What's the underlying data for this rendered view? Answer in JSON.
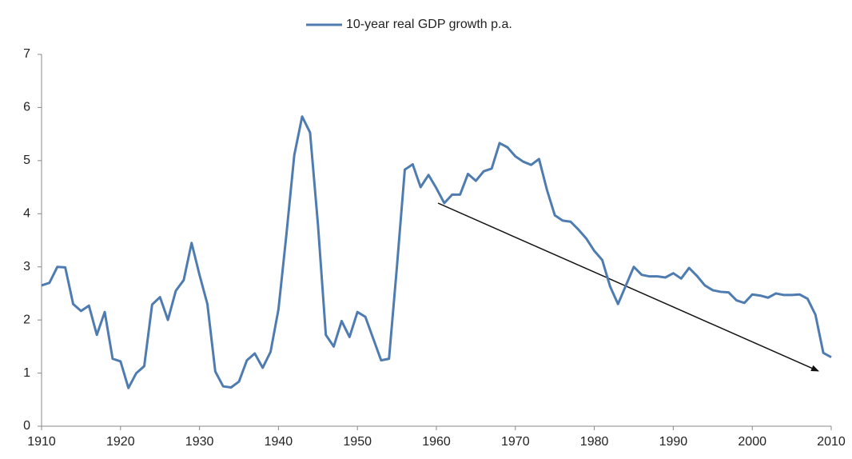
{
  "chart_data": {
    "type": "line",
    "x": [
      1910,
      1911,
      1912,
      1913,
      1914,
      1915,
      1916,
      1917,
      1918,
      1919,
      1920,
      1921,
      1922,
      1923,
      1924,
      1925,
      1926,
      1927,
      1928,
      1929,
      1930,
      1931,
      1932,
      1933,
      1934,
      1935,
      1936,
      1937,
      1938,
      1939,
      1940,
      1941,
      1942,
      1943,
      1944,
      1945,
      1946,
      1947,
      1948,
      1949,
      1950,
      1951,
      1952,
      1953,
      1954,
      1955,
      1956,
      1957,
      1958,
      1959,
      1960,
      1961,
      1962,
      1963,
      1964,
      1965,
      1966,
      1967,
      1968,
      1969,
      1970,
      1971,
      1972,
      1973,
      1974,
      1975,
      1976,
      1977,
      1978,
      1979,
      1980,
      1981,
      1982,
      1983,
      1984,
      1985,
      1986,
      1987,
      1988,
      1989,
      1990,
      1991,
      1992,
      1993,
      1994,
      1995,
      1996,
      1997,
      1998,
      1999,
      2000,
      2001,
      2002,
      2003,
      2004,
      2005,
      2006,
      2007,
      2008,
      2009,
      2010
    ],
    "series": [
      {
        "name": "10-year real GDP growth p.a.",
        "color": "#4f7cb0",
        "values": [
          2.65,
          2.7,
          3.0,
          2.99,
          2.3,
          2.17,
          2.27,
          1.72,
          2.15,
          1.27,
          1.22,
          0.72,
          1.0,
          1.13,
          2.29,
          2.43,
          2.0,
          2.55,
          2.75,
          3.45,
          2.85,
          2.3,
          1.03,
          0.75,
          0.73,
          0.84,
          1.24,
          1.37,
          1.1,
          1.4,
          2.2,
          3.6,
          5.1,
          5.83,
          5.53,
          3.8,
          1.72,
          1.5,
          1.98,
          1.68,
          2.15,
          2.06,
          1.65,
          1.24,
          1.27,
          3.0,
          4.83,
          4.93,
          4.5,
          4.73,
          4.48,
          4.2,
          4.36,
          4.36,
          4.75,
          4.62,
          4.8,
          4.85,
          5.33,
          5.25,
          5.08,
          4.98,
          4.92,
          5.03,
          4.45,
          3.97,
          3.87,
          3.85,
          3.7,
          3.53,
          3.3,
          3.13,
          2.63,
          2.3,
          2.65,
          3.0,
          2.85,
          2.82,
          2.82,
          2.8,
          2.88,
          2.78,
          2.98,
          2.83,
          2.65,
          2.56,
          2.53,
          2.52,
          2.37,
          2.32,
          2.48,
          2.46,
          2.42,
          2.5,
          2.47,
          2.47,
          2.48,
          2.4,
          2.1,
          1.38,
          1.3
        ]
      }
    ],
    "xlim": [
      1910,
      2010
    ],
    "xticks": [
      1910,
      1920,
      1930,
      1940,
      1950,
      1960,
      1970,
      1980,
      1990,
      2000,
      2010
    ],
    "ylim": [
      0,
      7
    ],
    "yticks": [
      0,
      1,
      2,
      3,
      4,
      5,
      6,
      7
    ],
    "grid": false,
    "legend": "top"
  }
}
